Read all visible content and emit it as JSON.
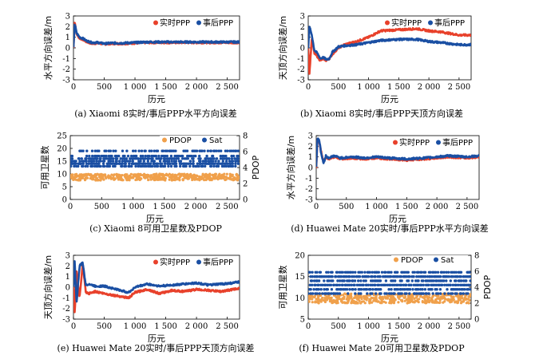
{
  "chart_data": [
    {
      "type": "line",
      "xlabel": "历元",
      "ylabel": "水平方向误差/m",
      "xlim": [
        0,
        2700
      ],
      "ylim": [
        -3,
        3
      ],
      "xticks": [
        "0",
        "500",
        "1 000",
        "1 500",
        "2 000",
        "2 500"
      ],
      "yticks": [
        "3",
        "2",
        "1",
        "0",
        "-1",
        "-2",
        "-3"
      ],
      "legend": "top-right",
      "caption": "(a) Xiaomi 8实时/事后PPP水平方向误差",
      "series": [
        {
          "name": "实时PPP",
          "color": "#e8412b",
          "x": [
            0,
            20,
            50,
            100,
            150,
            200,
            300,
            400,
            500,
            600,
            800,
            1000,
            1200,
            1500,
            2000,
            2500,
            2700
          ],
          "y": [
            0,
            2.5,
            1.3,
            0.9,
            0.8,
            0.6,
            0.4,
            0.45,
            0.35,
            0.4,
            0.4,
            0.45,
            0.5,
            0.5,
            0.5,
            0.5,
            0.5
          ]
        },
        {
          "name": "事后PPP",
          "color": "#1a4fa3",
          "x": [
            0,
            20,
            50,
            100,
            150,
            200,
            300,
            400,
            500,
            600,
            800,
            1000,
            1200,
            1500,
            2000,
            2500,
            2700
          ],
          "y": [
            0,
            2.3,
            1.4,
            1.0,
            0.9,
            0.7,
            0.5,
            0.5,
            0.4,
            0.45,
            0.45,
            0.5,
            0.55,
            0.55,
            0.55,
            0.55,
            0.55
          ]
        }
      ]
    },
    {
      "type": "line",
      "xlabel": "历元",
      "ylabel": "天顶方向误差/m",
      "xlim": [
        0,
        2700
      ],
      "ylim": [
        -3,
        3
      ],
      "xticks": [
        "0",
        "500",
        "1 000",
        "1 500",
        "2 000",
        "2 500"
      ],
      "yticks": [
        "3",
        "2",
        "1",
        "0",
        "-1",
        "-2",
        "-3"
      ],
      "legend": "top-right",
      "caption": "(b) Xiaomi 8实时/事后PPP天顶方向误差",
      "series": [
        {
          "name": "实时PPP",
          "color": "#e8412b",
          "x": [
            0,
            20,
            60,
            100,
            150,
            200,
            250,
            300,
            350,
            400,
            500,
            600,
            800,
            1000,
            1200,
            1500,
            1800,
            2000,
            2200,
            2500,
            2700
          ],
          "y": [
            0,
            -2.5,
            1.0,
            -0.5,
            -0.8,
            -1.2,
            -1.0,
            -1.2,
            -1.0,
            -0.6,
            0.0,
            0.3,
            0.6,
            1.0,
            1.6,
            1.7,
            1.8,
            1.6,
            1.5,
            1.2,
            1.2
          ]
        },
        {
          "name": "事后PPP",
          "color": "#1a4fa3",
          "x": [
            0,
            20,
            60,
            100,
            150,
            200,
            250,
            300,
            350,
            400,
            500,
            600,
            800,
            1000,
            1200,
            1500,
            1800,
            2000,
            2200,
            2500,
            2700
          ],
          "y": [
            0,
            2.0,
            1.2,
            -0.2,
            -0.5,
            -1.0,
            -0.9,
            -1.1,
            -1.0,
            -0.4,
            0.1,
            0.2,
            0.3,
            0.5,
            0.7,
            0.8,
            0.8,
            0.6,
            0.5,
            0.3,
            0.3
          ]
        }
      ]
    },
    {
      "type": "scatter",
      "xlabel": "历元",
      "ylabel": "可用卫星数",
      "y2label": "PDOP",
      "xlim": [
        0,
        2700
      ],
      "ylim": [
        0,
        25
      ],
      "y2lim": [
        0,
        8
      ],
      "xticks": [
        "0",
        "500",
        "1 000",
        "1 500",
        "2 000",
        "2 500"
      ],
      "yticks": [
        "25",
        "20",
        "15",
        "10",
        "5",
        "0"
      ],
      "y2ticks": [
        "8",
        "6",
        "4",
        "2",
        "0"
      ],
      "legend": "top-right",
      "caption": "(c) Xiaomi 8可用卫星数及PDOP",
      "series": [
        {
          "name": "PDOP",
          "color": "#f0a04b",
          "axis": "right",
          "band": [
            2.4,
            3.2
          ]
        },
        {
          "name": "Sat",
          "color": "#1a4fa3",
          "axis": "left",
          "levels": [
            13,
            14,
            15,
            16,
            17,
            19
          ]
        }
      ]
    },
    {
      "type": "line",
      "xlabel": "历元",
      "ylabel": "水平方向误差/m",
      "xlim": [
        0,
        2700
      ],
      "ylim": [
        -3,
        3
      ],
      "xticks": [
        "0",
        "500",
        "1 000",
        "1 500",
        "2 000",
        "2 500"
      ],
      "yticks": [
        "3",
        "2",
        "1",
        "0",
        "-1",
        "-2",
        "-3"
      ],
      "legend": "top-right",
      "caption": "(d) Huawei Mate 20实时/事后PPP水平方向误差",
      "series": [
        {
          "name": "实时PPP",
          "color": "#e8412b",
          "x": [
            0,
            20,
            50,
            80,
            120,
            160,
            200,
            300,
            400,
            600,
            800,
            1000,
            1200,
            1500,
            1800,
            2000,
            2200,
            2500,
            2700
          ],
          "y": [
            0,
            2.6,
            2.3,
            1.6,
            0.5,
            1.0,
            0.8,
            1.0,
            0.8,
            0.9,
            0.8,
            0.9,
            0.8,
            0.7,
            0.8,
            0.9,
            1.0,
            0.9,
            1.0
          ]
        },
        {
          "name": "事后PPP",
          "color": "#1a4fa3",
          "x": [
            0,
            20,
            50,
            80,
            120,
            160,
            200,
            300,
            400,
            600,
            800,
            1000,
            1200,
            1500,
            1800,
            2000,
            2200,
            2500,
            2700
          ],
          "y": [
            0,
            2.8,
            2.6,
            1.4,
            0.4,
            1.1,
            0.9,
            1.1,
            0.9,
            1.0,
            0.9,
            1.0,
            0.9,
            0.8,
            0.9,
            1.0,
            1.1,
            1.0,
            1.1
          ]
        }
      ]
    },
    {
      "type": "line",
      "xlabel": "历元",
      "ylabel": "天顶方向误差/m",
      "xlim": [
        0,
        2700
      ],
      "ylim": [
        -3,
        3
      ],
      "xticks": [
        "0",
        "500",
        "1 000",
        "1 500",
        "2 000",
        "2 500"
      ],
      "yticks": [
        "3",
        "2",
        "1",
        "0",
        "-1",
        "-2",
        "-3"
      ],
      "legend": "top-right",
      "caption": "(e) Huawei Mate 20实时/事后PPP天顶方向误差",
      "series": [
        {
          "name": "实时PPP",
          "color": "#e8412b",
          "x": [
            0,
            20,
            50,
            100,
            150,
            200,
            250,
            350,
            500,
            700,
            900,
            1000,
            1200,
            1400,
            1600,
            1800,
            2000,
            2200,
            2400,
            2600,
            2700
          ],
          "y": [
            0,
            -2.5,
            1.5,
            -1.0,
            2.2,
            -0.5,
            -0.6,
            -0.4,
            -0.6,
            -0.8,
            -1.0,
            -0.5,
            -0.2,
            -0.6,
            -0.3,
            -0.4,
            -0.2,
            -0.3,
            -0.4,
            -0.2,
            -0.1
          ]
        },
        {
          "name": "事后PPP",
          "color": "#1a4fa3",
          "x": [
            0,
            20,
            50,
            100,
            150,
            200,
            250,
            350,
            500,
            700,
            900,
            1000,
            1200,
            1400,
            1600,
            1800,
            2000,
            2200,
            2400,
            2600,
            2700
          ],
          "y": [
            0,
            2.5,
            -1.5,
            2.0,
            2.3,
            0.2,
            0.3,
            0.1,
            0.1,
            -0.2,
            -0.5,
            0.0,
            0.3,
            0.1,
            0.2,
            0.3,
            0.4,
            0.2,
            0.3,
            0.4,
            0.5
          ]
        }
      ]
    },
    {
      "type": "scatter",
      "xlabel": "历元",
      "ylabel": "可用卫星数",
      "y2label": "PDOP",
      "xlim": [
        0,
        2700
      ],
      "ylim": [
        5,
        20
      ],
      "y2lim": [
        0,
        8
      ],
      "xticks": [
        "0",
        "500",
        "1 000",
        "1 500",
        "2 000",
        "2 500"
      ],
      "yticks": [
        "20",
        "15",
        "10",
        "5"
      ],
      "y2ticks": [
        "8",
        "6",
        "4",
        "2",
        "0"
      ],
      "legend": "top-right",
      "caption": "(f) Huawei Mate 20可用卫星数及PDOP",
      "series": [
        {
          "name": "PDOP",
          "color": "#f0a04b",
          "axis": "right",
          "band": [
            2.0,
            3.2
          ]
        },
        {
          "name": "Sat",
          "color": "#1a4fa3",
          "axis": "left",
          "levels": [
            11,
            12,
            13,
            14,
            15,
            16
          ]
        }
      ]
    }
  ]
}
